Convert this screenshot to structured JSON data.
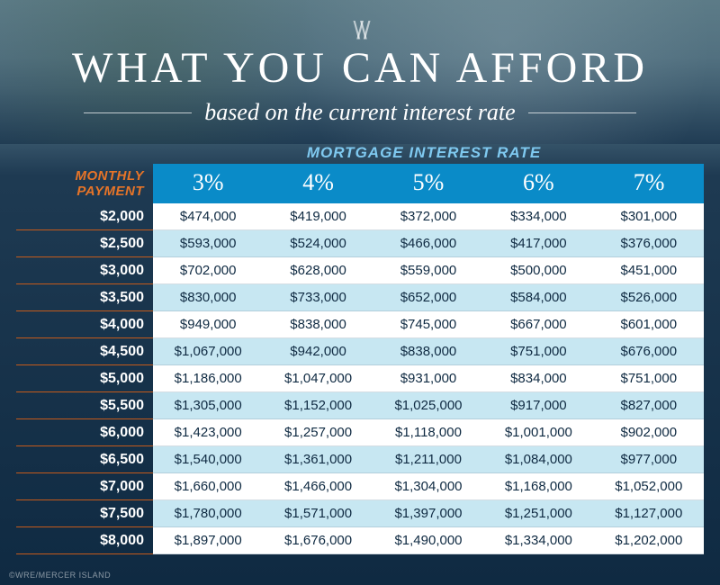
{
  "header": {
    "logo_glyph": "\\/\\/",
    "title": "WHAT YOU CAN AFFORD",
    "subtitle": "based on the current interest rate"
  },
  "labels": {
    "rate_header": "MORTGAGE INTEREST RATE",
    "payment_header_line1": "MONTHLY",
    "payment_header_line2": "PAYMENT"
  },
  "table": {
    "columns": [
      "3%",
      "4%",
      "5%",
      "6%",
      "7%"
    ],
    "rows": [
      {
        "payment": "$2,000",
        "values": [
          "$474,000",
          "$419,000",
          "$372,000",
          "$334,000",
          "$301,000"
        ]
      },
      {
        "payment": "$2,500",
        "values": [
          "$593,000",
          "$524,000",
          "$466,000",
          "$417,000",
          "$376,000"
        ]
      },
      {
        "payment": "$3,000",
        "values": [
          "$702,000",
          "$628,000",
          "$559,000",
          "$500,000",
          "$451,000"
        ]
      },
      {
        "payment": "$3,500",
        "values": [
          "$830,000",
          "$733,000",
          "$652,000",
          "$584,000",
          "$526,000"
        ]
      },
      {
        "payment": "$4,000",
        "values": [
          "$949,000",
          "$838,000",
          "$745,000",
          "$667,000",
          "$601,000"
        ]
      },
      {
        "payment": "$4,500",
        "values": [
          "$1,067,000",
          "$942,000",
          "$838,000",
          "$751,000",
          "$676,000"
        ]
      },
      {
        "payment": "$5,000",
        "values": [
          "$1,186,000",
          "$1,047,000",
          "$931,000",
          "$834,000",
          "$751,000"
        ]
      },
      {
        "payment": "$5,500",
        "values": [
          "$1,305,000",
          "$1,152,000",
          "$1,025,000",
          "$917,000",
          "$827,000"
        ]
      },
      {
        "payment": "$6,000",
        "values": [
          "$1,423,000",
          "$1,257,000",
          "$1,118,000",
          "$1,001,000",
          "$902,000"
        ]
      },
      {
        "payment": "$6,500",
        "values": [
          "$1,540,000",
          "$1,361,000",
          "$1,211,000",
          "$1,084,000",
          "$977,000"
        ]
      },
      {
        "payment": "$7,000",
        "values": [
          "$1,660,000",
          "$1,466,000",
          "$1,304,000",
          "$1,168,000",
          "$1,052,000"
        ]
      },
      {
        "payment": "$7,500",
        "values": [
          "$1,780,000",
          "$1,571,000",
          "$1,397,000",
          "$1,251,000",
          "$1,127,000"
        ]
      },
      {
        "payment": "$8,000",
        "values": [
          "$1,897,000",
          "$1,676,000",
          "$1,490,000",
          "$1,334,000",
          "$1,202,000"
        ]
      }
    ]
  },
  "credit": "©WRE/MERCER ISLAND",
  "style": {
    "title_color": "#ffffff",
    "subtitle_color": "#ffffff",
    "rate_label_color": "#7fc9f0",
    "payment_label_color": "#e67428",
    "rate_header_bg": "#0a8bc8",
    "row_odd_bg": "#ffffff",
    "row_even_bg": "#c7e7f2",
    "payment_border_color": "#c55a1a",
    "value_text_color": "#0f2a42",
    "title_fontsize": 48,
    "subtitle_fontsize": 26,
    "rate_header_fontsize": 26,
    "cell_fontsize": 15,
    "payment_fontsize": 16
  }
}
